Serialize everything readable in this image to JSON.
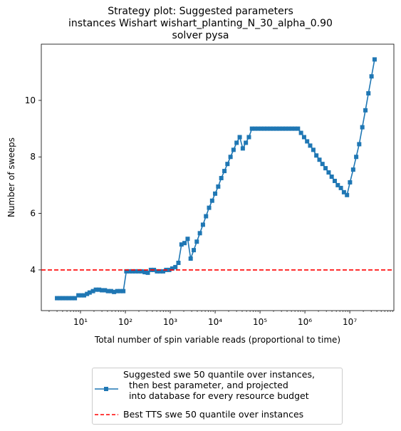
{
  "chart_data": {
    "type": "line",
    "title": "Strategy plot: Suggested parameters\ninstances Wishart wishart_planting_N_30_alpha_0.90\nsolver pysa",
    "xlabel": "Total number of spin variable reads (proportional to time)",
    "ylabel": "Number of sweeps",
    "xscale": "log",
    "xlim": [
      1.34,
      96000000
    ],
    "ylim": [
      2.56,
      11.99
    ],
    "xticks": [
      {
        "value": 10,
        "label": "10¹"
      },
      {
        "value": 100,
        "label": "10²"
      },
      {
        "value": 1000,
        "label": "10³"
      },
      {
        "value": 10000,
        "label": "10⁴"
      },
      {
        "value": 100000,
        "label": "10⁵"
      },
      {
        "value": 1000000,
        "label": "10⁶"
      },
      {
        "value": 10000000,
        "label": "10⁷"
      }
    ],
    "yticks": [
      4,
      6,
      8,
      10
    ],
    "legend": "lower center outside",
    "series": [
      {
        "name": "Suggested swe 50 quantile over instances,\n  then best parameter, and projected\n  into database for every resource budget",
        "color": "#1f77b4",
        "marker": "square",
        "x": [
          3,
          3.5,
          4,
          4.7,
          5.5,
          6.5,
          7.5,
          9,
          10.5,
          12,
          14,
          16,
          19,
          22,
          26,
          30,
          35,
          41,
          48,
          56,
          66,
          77,
          90,
          105,
          123,
          144,
          168,
          197,
          230,
          270,
          316,
          370,
          433,
          507,
          593,
          694,
          812,
          950,
          1110,
          1300,
          1520,
          1780,
          2080,
          2440,
          2850,
          3340,
          3900,
          4570,
          5350,
          6260,
          7320,
          8570,
          10000,
          11700,
          13700,
          16100,
          18800,
          22000,
          25700,
          30100,
          35300,
          41300,
          48300,
          56500,
          66100,
          77400,
          90600,
          106000,
          124000,
          145000,
          170000,
          199000,
          233000,
          272000,
          319000,
          373000,
          437000,
          511000,
          598000,
          700000,
          819000,
          959000,
          1120000,
          1310000,
          1540000,
          1800000,
          2110000,
          2460000,
          2880000,
          3380000,
          3950000,
          4620000,
          5410000,
          6330000,
          7410000,
          8670000,
          10100000,
          11900000,
          13900000,
          16200000,
          19000000,
          22300000,
          26000000,
          30500000,
          35700000
        ],
        "values": [
          3.0,
          3.0,
          3.0,
          3.0,
          3.0,
          3.0,
          3.0,
          3.1,
          3.1,
          3.1,
          3.15,
          3.2,
          3.25,
          3.3,
          3.3,
          3.28,
          3.28,
          3.25,
          3.25,
          3.22,
          3.25,
          3.25,
          3.25,
          3.95,
          3.95,
          3.95,
          3.95,
          3.95,
          3.95,
          3.92,
          3.9,
          4.0,
          4.0,
          3.95,
          3.95,
          3.95,
          4.0,
          4.0,
          4.05,
          4.1,
          4.25,
          4.9,
          4.95,
          5.1,
          4.4,
          4.7,
          5.0,
          5.3,
          5.6,
          5.9,
          6.2,
          6.45,
          6.7,
          6.95,
          7.25,
          7.5,
          7.75,
          8.0,
          8.25,
          8.5,
          8.7,
          8.3,
          8.5,
          8.7,
          9.0,
          9.0,
          9.0,
          9.0,
          9.0,
          9.0,
          9.0,
          9.0,
          9.0,
          9.0,
          9.0,
          9.0,
          9.0,
          9.0,
          9.0,
          9.0,
          8.85,
          8.7,
          8.55,
          8.4,
          8.25,
          8.05,
          7.9,
          7.75,
          7.6,
          7.45,
          7.3,
          7.15,
          7.0,
          6.9,
          6.75,
          6.65,
          7.1,
          7.55,
          8.0,
          8.45,
          9.05,
          9.65,
          10.25,
          10.85,
          11.45
        ]
      }
    ],
    "hlines": [
      {
        "name": "Best TTS swe 50 quantile over instances",
        "color": "#ff0000",
        "style": "dashed",
        "value": 4
      }
    ]
  }
}
